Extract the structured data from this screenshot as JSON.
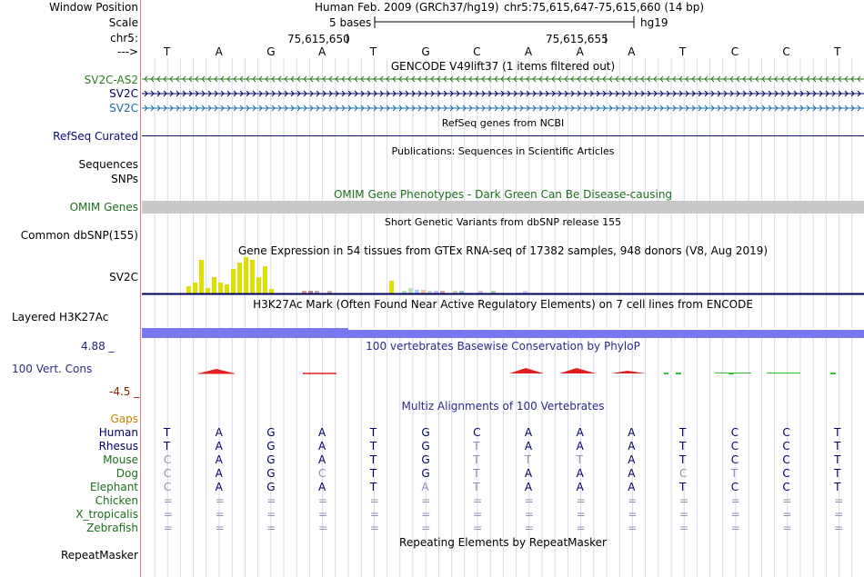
{
  "header": {
    "window_position_label": "Window Position",
    "scale_label": "Scale",
    "chrom_label": "chr5:",
    "strand_label": "--->",
    "assembly": "Human Feb. 2009 (GRCh37/hg19)",
    "position": "chr5:75,615,647-75,615,660 (14 bp)",
    "scale_text": "5 bases",
    "db": "hg19",
    "coord1": "75,615,650",
    "coord2": "75,615,655"
  },
  "bases": [
    "T",
    "A",
    "G",
    "A",
    "T",
    "G",
    "C",
    "A",
    "A",
    "A",
    "T",
    "C",
    "C",
    "T"
  ],
  "tracks": {
    "gencode_title": "GENCODE V49lift37 (1 items filtered out)",
    "genes": [
      {
        "name": "SV2C-AS2",
        "color": "#2e7d1e"
      },
      {
        "name": "SV2C",
        "color": "#000060"
      },
      {
        "name": "SV2C",
        "color": "#1a6fa8"
      }
    ],
    "refseq_title": "RefSeq genes from NCBI",
    "refseq_label": "RefSeq Curated",
    "pubs_title": "Publications: Sequences in Scientific Articles",
    "sequences_label": "Sequences",
    "snps_label": "SNPs",
    "omim_title": "OMIM Gene Phenotypes - Dark Green Can Be Disease-causing",
    "omim_label": "OMIM Genes",
    "dbsnp_title": "Short Genetic Variants from dbSNP release 155",
    "dbsnp_label": "Common dbSNP(155)",
    "gtex_title": "Gene Expression in 54 tissues from GTEx RNA-seq of 17382 samples, 948 donors (V8, Aug 2019)",
    "gtex_label": "SV2C",
    "h3k_title": "H3K27Ac Mark (Often Found Near Active Regulatory Elements) on 7 cell lines from ENCODE",
    "h3k_label": "Layered H3K27Ac",
    "phylop_title": "100 vertebrates Basewise Conservation by PhyloP",
    "phylop_label": "100 Vert. Cons",
    "phylop_max": "4.88 _",
    "phylop_min": "-4.5 _",
    "multiz_title": "Multiz Alignments of 100 Vertebrates",
    "gaps_label": "Gaps",
    "repeat_title": "Repeating Elements by RepeatMasker",
    "repeat_label": "RepeatMasker"
  },
  "alignment": [
    {
      "species": "Human",
      "bases": [
        "T",
        "A",
        "G",
        "A",
        "T",
        "G",
        "C",
        "A",
        "A",
        "A",
        "T",
        "C",
        "C",
        "T"
      ]
    },
    {
      "species": "Rhesus",
      "bases": [
        "T",
        "A",
        "G",
        "A",
        "T",
        "G",
        "T",
        "A",
        "A",
        "A",
        "T",
        "C",
        "C",
        "T"
      ]
    },
    {
      "species": "Mouse",
      "bases": [
        "C",
        "A",
        "G",
        "A",
        "T",
        "G",
        "T",
        "T",
        "T",
        "A",
        "T",
        "C",
        "C",
        "T"
      ]
    },
    {
      "species": "Dog",
      "bases": [
        "C",
        "A",
        "G",
        "C",
        "T",
        "G",
        "T",
        "A",
        "A",
        "A",
        "C",
        "T",
        "C",
        "T"
      ]
    },
    {
      "species": "Elephant",
      "bases": [
        "C",
        "A",
        "G",
        "A",
        "T",
        "A",
        "T",
        "A",
        "A",
        "A",
        "T",
        "C",
        "C",
        "T"
      ]
    },
    {
      "species": "Chicken",
      "bases": [
        "=",
        "=",
        "=",
        "=",
        "=",
        "=",
        "=",
        "=",
        "=",
        "=",
        "=",
        "=",
        "=",
        "="
      ]
    },
    {
      "species": "X_tropicalis",
      "bases": [
        "=",
        "=",
        "=",
        "=",
        "=",
        "=",
        "=",
        "=",
        "=",
        "=",
        "=",
        "=",
        "=",
        "="
      ]
    },
    {
      "species": "Zebrafish",
      "bases": [
        "=",
        "=",
        "=",
        "=",
        "=",
        "=",
        "=",
        "=",
        "=",
        "=",
        "=",
        "=",
        "=",
        "="
      ]
    }
  ],
  "colors": {
    "gene_green": "#2e7d1e",
    "gene_navy": "#000060",
    "gene_blue": "#1a6fa8",
    "refseq": "#0c0c78",
    "omim_bar": "#c8c8c8",
    "omim_title": "#1e6e1e",
    "h3k27ac": "#7878f0",
    "phylop_title": "#2a2a8c",
    "phylop_max": "#20207a",
    "phylop_min": "#8c2000",
    "gaps": "#c88200",
    "species_text": "#000060",
    "species_green": "#1e6e1e",
    "mismatch": "#9090b0"
  }
}
